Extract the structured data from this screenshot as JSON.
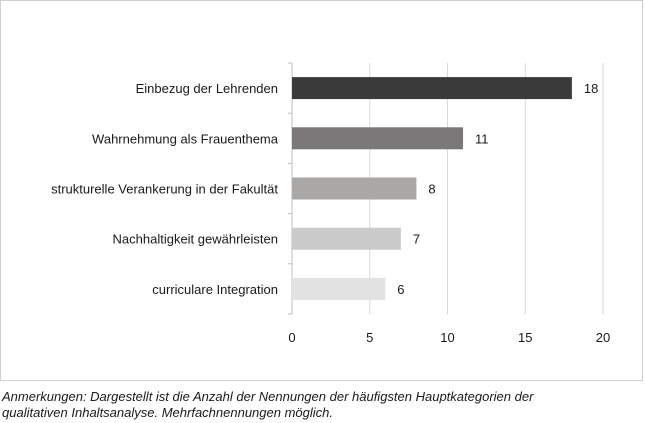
{
  "chart_data": {
    "type": "bar",
    "orientation": "horizontal",
    "categories": [
      "Einbezug der Lehrenden",
      "Wahrnehmung als Frauenthema",
      "strukturelle Verankerung in der Fakultät",
      "Nachhaltigkeit gewährleisten",
      "curriculare Integration"
    ],
    "values": [
      18,
      11,
      8,
      7,
      6
    ],
    "bar_colors": [
      "#3a3a3a",
      "#7a7878",
      "#aaa7a7",
      "#cbcaca",
      "#e2e2e2"
    ],
    "xlim": [
      0,
      20
    ],
    "xticks": [
      0,
      5,
      10,
      15,
      20
    ],
    "grid": true
  },
  "note": {
    "line1": "Anmerkungen: Dargestellt ist die Anzahl der Nennungen der häufigsten Hauptkategorien der",
    "line2": "qualitativen Inhaltsanalyse. Mehrfachnennungen möglich."
  }
}
